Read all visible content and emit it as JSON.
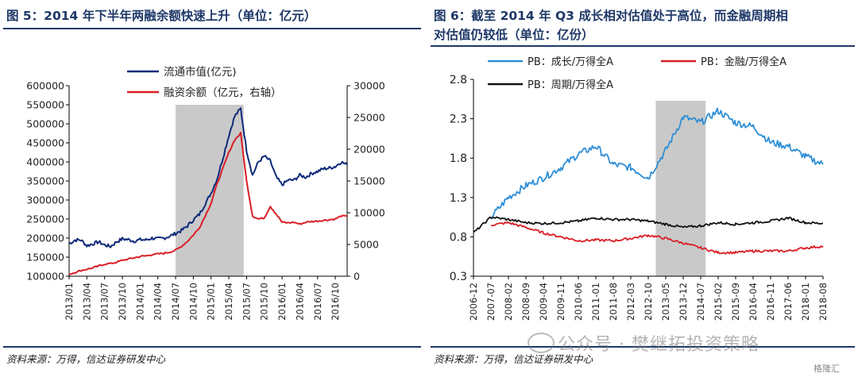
{
  "left": {
    "title": "图 5：2014 年下半年两融余额快速上升（单位：亿元）",
    "source": "资料来源：万得，信达证券研发中心"
  },
  "right": {
    "title_line1": "图 6：截至 2014 年 Q3 成长相对估值处于高位，而金融周期相",
    "title_line2": "对估值仍较低（单位：亿份）",
    "source": "资料来源：万得，信达证券研发中心"
  },
  "watermark": {
    "text": "公众号 · 樊继拓投资策略",
    "logo": "格隆汇"
  },
  "colors": {
    "blue": "#0d2a7a",
    "red": "#d91f26",
    "lightblue": "#2f8fd6",
    "black": "#111111",
    "shade": "#c9c9c9"
  },
  "chart_data": [
    {
      "type": "line",
      "dual_axis": true,
      "x_ticks": [
        "2013/01",
        "2013/04",
        "2013/07",
        "2013/10",
        "2014/01",
        "2014/04",
        "2014/07",
        "2014/10",
        "2015/01",
        "2015/04",
        "2015/07",
        "2015/10",
        "2016/01",
        "2016/04",
        "2016/07",
        "2016/10"
      ],
      "ylim_left": [
        100000,
        600000
      ],
      "yticks_left": [
        "600000",
        "550000",
        "500000",
        "450000",
        "400000",
        "350000",
        "300000",
        "250000",
        "200000",
        "150000",
        "100000"
      ],
      "ylim_right": [
        0,
        30000
      ],
      "yticks_right": [
        "30000",
        "25000",
        "20000",
        "15000",
        "10000",
        "5000",
        "0"
      ],
      "shaded_x_range": [
        "2014/07",
        "2015/06"
      ],
      "legend": [
        "流通市值(亿元)",
        "融资余额（亿元，右轴）"
      ],
      "series": [
        {
          "name": "流通市值(亿元)",
          "axis": "left",
          "x_months": [
            0,
            1,
            2,
            3,
            4,
            5,
            6,
            7,
            8,
            9,
            10,
            11,
            12,
            13,
            14,
            15,
            16,
            17,
            18,
            19,
            20,
            21,
            22,
            23,
            24,
            25,
            26,
            27,
            28,
            29,
            30,
            31,
            32,
            33,
            34,
            35,
            36,
            37,
            38,
            39,
            40,
            41,
            42,
            43,
            44,
            45,
            46,
            47
          ],
          "values": [
            185000,
            195000,
            195000,
            180000,
            185000,
            190000,
            182000,
            178000,
            190000,
            198000,
            196000,
            192000,
            196000,
            195000,
            200000,
            198000,
            200000,
            205000,
            212000,
            220000,
            232000,
            248000,
            262000,
            290000,
            318000,
            355000,
            410000,
            470000,
            520000,
            540000,
            430000,
            365000,
            400000,
            415000,
            402000,
            360000,
            340000,
            352000,
            352000,
            365000,
            360000,
            370000,
            375000,
            382000,
            384000,
            388000,
            400000,
            392000
          ]
        },
        {
          "name": "融资余额（亿元，右轴）",
          "axis": "right",
          "x_months": [
            0,
            1,
            2,
            3,
            4,
            5,
            6,
            7,
            8,
            9,
            10,
            11,
            12,
            13,
            14,
            15,
            16,
            17,
            18,
            19,
            20,
            21,
            22,
            23,
            24,
            25,
            26,
            27,
            28,
            29,
            30,
            31,
            32,
            33,
            34,
            35,
            36,
            37,
            38,
            39,
            40,
            41,
            42,
            43,
            44,
            45,
            46,
            47
          ],
          "values": [
            300,
            600,
            900,
            1100,
            1300,
            1600,
            1900,
            2000,
            2200,
            2500,
            2700,
            2900,
            3100,
            3200,
            3400,
            3500,
            3600,
            3800,
            4100,
            4700,
            5500,
            6500,
            7600,
            9500,
            11500,
            14500,
            17000,
            19500,
            21500,
            22500,
            15000,
            9500,
            9000,
            9200,
            11000,
            9800,
            8500,
            8400,
            8500,
            8200,
            8500,
            8600,
            8700,
            8800,
            8900,
            9000,
            9500,
            9400
          ]
        }
      ]
    },
    {
      "type": "line",
      "x_ticks": [
        "2006-12",
        "2007-07",
        "2008-02",
        "2008-09",
        "2009-04",
        "2009-11",
        "2010-06",
        "2011-01",
        "2011-08",
        "2012-03",
        "2012-10",
        "2013-05",
        "2013-12",
        "2014-07",
        "2015-02",
        "2015-09",
        "2016-04",
        "2016-11",
        "2017-06",
        "2018-01",
        "2018-08"
      ],
      "ylim": [
        0.3,
        2.8
      ],
      "yticks": [
        "2.8",
        "2.3",
        "1.8",
        "1.3",
        "0.8",
        "0.3"
      ],
      "shaded_x_range": [
        "2013-01",
        "2014-09"
      ],
      "legend": [
        "PB：成长/万得全A",
        "PB：金融/万得全A",
        "PB：周期/万得全A"
      ],
      "series": [
        {
          "name": "PB：成长/万得全A",
          "x_months": [
            0,
            7,
            14,
            21,
            28,
            35,
            42,
            49,
            56,
            63,
            70,
            77,
            84,
            91,
            98,
            105,
            112,
            119,
            126,
            133,
            140
          ],
          "values": [
            null,
            1.05,
            1.3,
            1.45,
            1.55,
            1.68,
            1.85,
            1.95,
            1.72,
            1.68,
            1.55,
            1.9,
            2.32,
            2.25,
            2.4,
            2.25,
            2.2,
            2.0,
            1.95,
            1.82,
            1.72
          ]
        },
        {
          "name": "PB：金融/万得全A",
          "x_months": [
            0,
            7,
            14,
            21,
            28,
            35,
            42,
            49,
            56,
            63,
            70,
            77,
            84,
            91,
            98,
            105,
            112,
            119,
            126,
            133,
            140
          ],
          "values": [
            null,
            0.95,
            0.98,
            0.92,
            0.85,
            0.8,
            0.75,
            0.76,
            0.75,
            0.78,
            0.82,
            0.78,
            0.72,
            0.66,
            0.6,
            0.6,
            0.62,
            0.62,
            0.62,
            0.66,
            0.68
          ]
        },
        {
          "name": "PB：周期/万得全A",
          "x_months": [
            0,
            7,
            14,
            21,
            28,
            35,
            42,
            49,
            56,
            63,
            70,
            77,
            84,
            91,
            98,
            105,
            112,
            119,
            126,
            133,
            140
          ],
          "values": [
            0.85,
            1.05,
            1.02,
            0.98,
            0.97,
            0.98,
            1.0,
            1.04,
            1.02,
            1.02,
            1.0,
            0.96,
            0.92,
            0.94,
            0.98,
            0.96,
            0.98,
            1.0,
            1.04,
            0.98,
            0.97
          ]
        }
      ]
    }
  ]
}
